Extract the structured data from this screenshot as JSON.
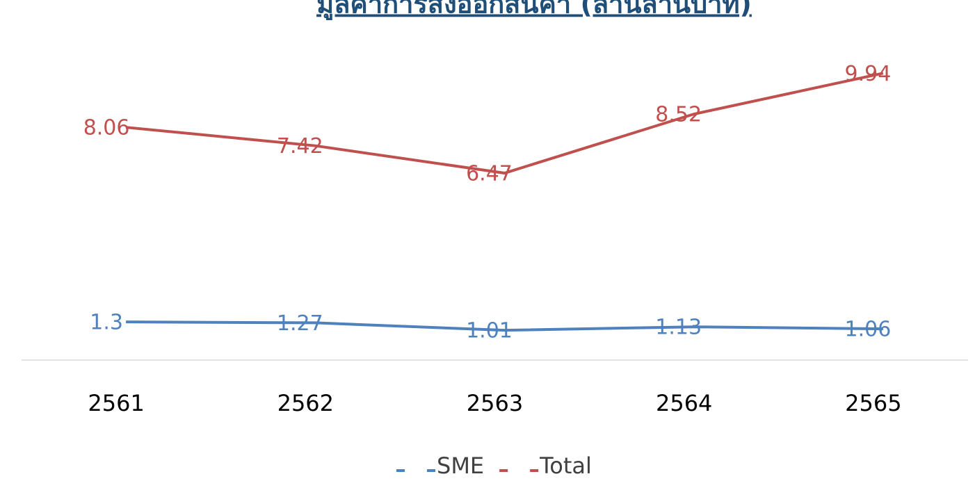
{
  "chart_data": {
    "type": "line",
    "title": "มูลค่าการส่งออกสินค้า (ล้านล้านบาท)",
    "categories": [
      "2561",
      "2562",
      "2563",
      "2564",
      "2565"
    ],
    "series": [
      {
        "name": "SME",
        "color": "#4f81bd",
        "values": [
          1.3,
          1.27,
          1.01,
          1.13,
          1.06
        ]
      },
      {
        "name": "Total",
        "color": "#c0504d",
        "values": [
          8.06,
          7.42,
          6.47,
          8.52,
          9.94
        ]
      }
    ],
    "ylim": [
      0,
      12
    ],
    "legend": "bottom"
  }
}
